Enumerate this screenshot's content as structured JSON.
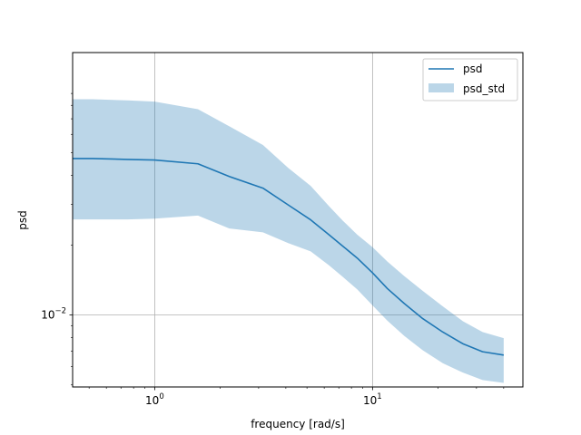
{
  "chart_data": {
    "type": "line",
    "xscale": "log",
    "yscale": "log",
    "xlabel": "frequency [rad/s]",
    "ylabel": "psd",
    "xlim": [
      0.42,
      49
    ],
    "ylim": [
      0.0049,
      0.135
    ],
    "grid": true,
    "legend_position": "top-right",
    "xticks": [
      {
        "value": 1,
        "label": "10",
        "exp": "0"
      },
      {
        "value": 10,
        "label": "10",
        "exp": "1"
      }
    ],
    "yticks": [
      {
        "value": 0.01,
        "label": "10",
        "exp": "−2"
      }
    ],
    "x": [
      0.42,
      0.52,
      0.75,
      1.0,
      1.58,
      2.2,
      3.14,
      4.1,
      5.2,
      6.3,
      7.3,
      8.5,
      10.0,
      11.7,
      14.0,
      17.0,
      21.0,
      26.0,
      32.0,
      40.0
    ],
    "series": [
      {
        "name": "psd",
        "kind": "line",
        "color": "#1f77b4",
        "values": [
          0.0472,
          0.0472,
          0.0468,
          0.0465,
          0.0448,
          0.0395,
          0.0352,
          0.0298,
          0.0257,
          0.0222,
          0.0198,
          0.0176,
          0.0152,
          0.013,
          0.0112,
          0.00965,
          0.00845,
          0.00752,
          0.00695,
          0.00672
        ]
      },
      {
        "name": "psd_std",
        "kind": "band",
        "color": "#1f77b4",
        "opacity": 0.3,
        "lower": [
          0.0258,
          0.0258,
          0.0258,
          0.026,
          0.0268,
          0.0236,
          0.0227,
          0.0204,
          0.0188,
          0.0164,
          0.0146,
          0.0129,
          0.011,
          0.00945,
          0.00812,
          0.00705,
          0.0062,
          0.00565,
          0.00525,
          0.0051
        ],
        "upper": [
          0.085,
          0.085,
          0.084,
          0.083,
          0.077,
          0.065,
          0.054,
          0.043,
          0.036,
          0.0295,
          0.0255,
          0.0222,
          0.0196,
          0.017,
          0.0147,
          0.0127,
          0.0109,
          0.0094,
          0.00845,
          0.00795
        ]
      }
    ]
  }
}
